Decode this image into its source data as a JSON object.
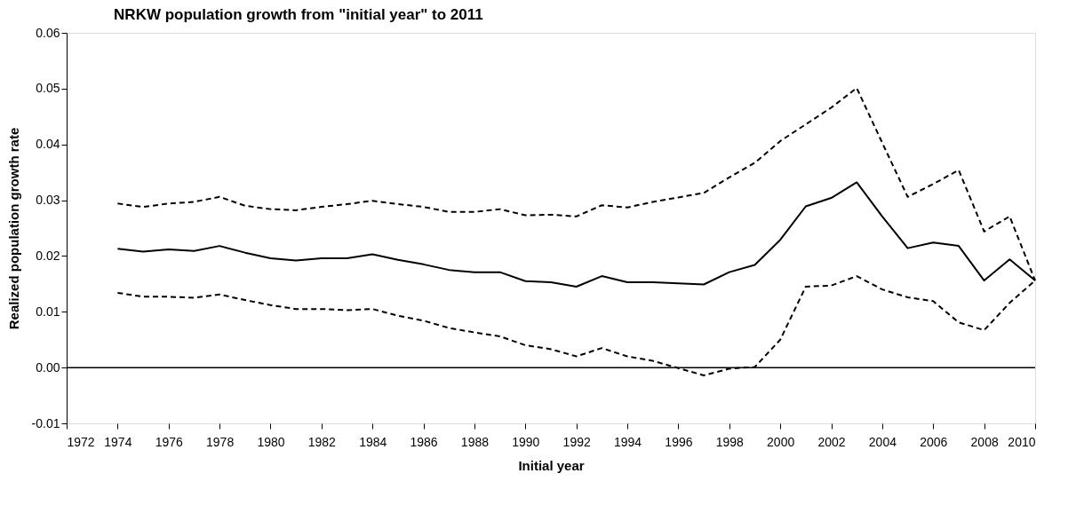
{
  "chart_data": {
    "type": "line",
    "title": "NRKW population growth from \"initial year\" to 2011",
    "xlabel": "Initial year",
    "ylabel": "Realized population  growth rate",
    "x": [
      1974,
      1975,
      1976,
      1977,
      1978,
      1979,
      1980,
      1981,
      1982,
      1983,
      1984,
      1985,
      1986,
      1987,
      1988,
      1989,
      1990,
      1991,
      1992,
      1993,
      1994,
      1995,
      1996,
      1997,
      1998,
      1999,
      2000,
      2001,
      2002,
      2003,
      2004,
      2005,
      2006,
      2007,
      2008,
      2009,
      2010
    ],
    "series": [
      {
        "color": "#000000",
        "line_style": "dashed",
        "values": [
          0.0294,
          0.0288,
          0.0294,
          0.0297,
          0.0306,
          0.029,
          0.0284,
          0.0282,
          0.0288,
          0.0293,
          0.0299,
          0.0293,
          0.0288,
          0.0279,
          0.0279,
          0.0284,
          0.0273,
          0.0274,
          0.0271,
          0.0291,
          0.0287,
          0.0297,
          0.0305,
          0.0313,
          0.0341,
          0.0367,
          0.0406,
          0.0436,
          0.0466,
          0.0501,
          0.0403,
          0.0306,
          0.0329,
          0.0354,
          0.0244,
          0.0271,
          0.0156
        ]
      },
      {
        "color": "#000000",
        "line_style": "solid",
        "values": [
          0.0213,
          0.0208,
          0.0212,
          0.0209,
          0.0218,
          0.0206,
          0.0196,
          0.0192,
          0.0196,
          0.0196,
          0.0203,
          0.0193,
          0.0185,
          0.0175,
          0.0171,
          0.0171,
          0.0155,
          0.0153,
          0.0145,
          0.0164,
          0.0153,
          0.0153,
          0.0151,
          0.0149,
          0.0171,
          0.0184,
          0.0229,
          0.0289,
          0.0304,
          0.0332,
          0.0271,
          0.0214,
          0.0224,
          0.0218,
          0.0156,
          0.0194,
          0.0156
        ]
      },
      {
        "color": "#000000",
        "line_style": "dashed",
        "values": [
          0.0134,
          0.0127,
          0.0127,
          0.0125,
          0.0131,
          0.0121,
          0.0112,
          0.0105,
          0.0105,
          0.0103,
          0.0105,
          0.0093,
          0.0084,
          0.0071,
          0.0063,
          0.0056,
          0.004,
          0.0033,
          0.002,
          0.0035,
          0.002,
          0.0012,
          -0.0001,
          -0.0014,
          -0.0002,
          0.0001,
          0.005,
          0.0145,
          0.0147,
          0.0164,
          0.014,
          0.0126,
          0.0119,
          0.0081,
          0.0067,
          0.0116,
          0.0156
        ]
      }
    ],
    "xlim": [
      1972,
      2010
    ],
    "xticks": [
      1972,
      1974,
      1976,
      1978,
      1980,
      1982,
      1984,
      1986,
      1988,
      1990,
      1992,
      1994,
      1996,
      1998,
      2000,
      2002,
      2004,
      2006,
      2008,
      2010
    ],
    "ylim": [
      -0.01,
      0.06
    ],
    "yticks": [
      {
        "value": -0.01,
        "label": "-0.01"
      },
      {
        "value": 0,
        "label": "0.00"
      },
      {
        "value": 0.01,
        "label": "0.01"
      },
      {
        "value": 0.02,
        "label": "0.02"
      },
      {
        "value": 0.03,
        "label": "0.03"
      },
      {
        "value": 0.04,
        "label": "0.04"
      },
      {
        "value": 0.05,
        "label": "0.05"
      },
      {
        "value": 0.06,
        "label": "0.06"
      }
    ],
    "ref_lines": [
      {
        "axis": "y",
        "value": 0,
        "color": "#000000",
        "line_style": "solid"
      }
    ],
    "grid": false,
    "marker": "none"
  }
}
